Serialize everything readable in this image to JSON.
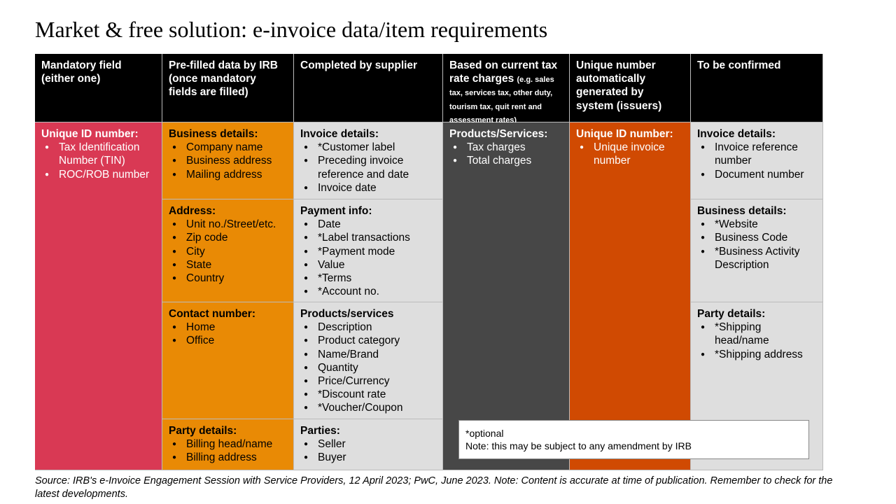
{
  "title": "Market & free solution: e-invoice data/item requirements",
  "headers": [
    {
      "main": "Mandatory field (either one)",
      "small": ""
    },
    {
      "main": "Pre-filled data by IRB (once mandatory fields are filled)",
      "small": ""
    },
    {
      "main": "Completed by supplier",
      "small": ""
    },
    {
      "main": "Based on current tax rate charges ",
      "small": "(e.g. sales tax, services tax, other duty, tourism tax, quit rent and assessment rates)"
    },
    {
      "main": "Unique number automatically generated by system (issuers)",
      "small": ""
    },
    {
      "main": "To be confirmed",
      "small": ""
    }
  ],
  "cells": [
    {
      "title": "Unique ID number:",
      "items": [
        "Tax Identification Number (TIN)",
        "ROC/ROB number"
      ]
    },
    {
      "title": "Business details:",
      "items": [
        "Company name",
        "Business address",
        "Mailing address"
      ]
    },
    {
      "title": "Address:",
      "items": [
        "Unit no./Street/etc.",
        "Zip code",
        "City",
        "State",
        "Country"
      ]
    },
    {
      "title": "Contact number:",
      "items": [
        "Home",
        "Office"
      ]
    },
    {
      "title": "Party details:",
      "items": [
        "Billing head/name",
        "Billing address"
      ]
    },
    {
      "title": "Invoice details:",
      "items": [
        "*Customer label",
        "Preceding invoice reference and date",
        "Invoice date"
      ]
    },
    {
      "title": "Payment info:",
      "items": [
        "Date",
        "*Label transactions",
        "*Payment mode",
        "Value",
        "*Terms",
        "*Account no."
      ]
    },
    {
      "title": "Products/services",
      "items": [
        "Description",
        "Product category",
        "Name/Brand",
        "Quantity",
        "Price/Currency",
        "*Discount rate",
        "*Voucher/Coupon"
      ]
    },
    {
      "title": "Parties:",
      "items": [
        "Seller",
        "Buyer"
      ]
    },
    {
      "title": "Products/Services:",
      "items": [
        "Tax charges",
        "Total charges"
      ]
    },
    {
      "title": "Unique ID number:",
      "items": [
        "Unique invoice number"
      ]
    },
    {
      "title": "Invoice details:",
      "items": [
        "Invoice reference number",
        "Document number"
      ]
    },
    {
      "title": "Business details:",
      "items": [
        "*Website",
        "Business Code",
        "*Business Activity Description"
      ]
    },
    {
      "title": "Party details:",
      "items": [
        "*Shipping head/name",
        "*Shipping address"
      ]
    }
  ],
  "note": {
    "line1": "*optional",
    "line2": "Note: this may be subject to any amendment by IRB"
  },
  "source": "Source: IRB's e-Invoice Engagement Session with Service Providers, 12 April 2023; PwC, June 2023. Note: Content is accurate at time of publication. Remember to check for the latest developments."
}
